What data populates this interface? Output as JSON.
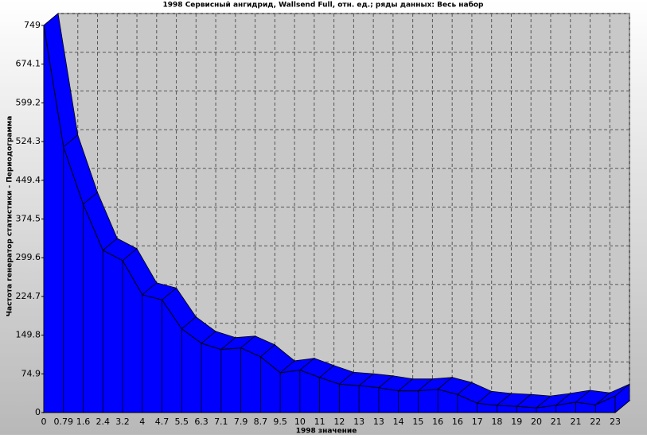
{
  "chart_data": {
    "type": "area3d",
    "title": "1998 Сервисный ангидрид, Wallsend Full, отн. ед.; ряды данных: Весь набор",
    "x_label": "1998 значение",
    "y_label": "Частота генератор статистики - Периодограмма",
    "categories": [
      "0",
      "0.79",
      "1.6",
      "2.4",
      "3.2",
      "4",
      "4.7",
      "5.5",
      "6.3",
      "7.1",
      "7.9",
      "8.7",
      "9.5",
      "10",
      "11",
      "12",
      "13",
      "13",
      "14",
      "15",
      "16",
      "16",
      "17",
      "18",
      "19",
      "20",
      "21",
      "21",
      "22",
      "23"
    ],
    "values": [
      749,
      514,
      403,
      314,
      294,
      228,
      218,
      162,
      134,
      122,
      125,
      108,
      77,
      82,
      68,
      55,
      52,
      48,
      42,
      42,
      45,
      35,
      18,
      14,
      12,
      9,
      14,
      20,
      15,
      32
    ],
    "color": "#0000ff",
    "ylim": [
      0,
      749
    ],
    "yticks": [
      0,
      74.9,
      149.8,
      224.7,
      299.6,
      374.5,
      449.4,
      524.3,
      599.2,
      674.1,
      749
    ],
    "grid": true
  }
}
